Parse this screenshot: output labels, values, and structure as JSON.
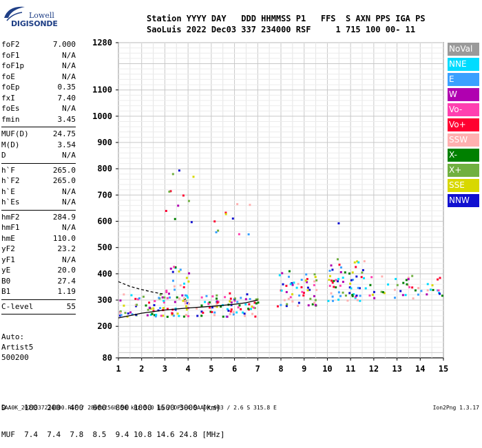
{
  "logo": {
    "line1": "Lowell",
    "line2": "DIGISONDE"
  },
  "header": {
    "line1": "Station YYYY DAY   DDD HHMMSS P1   FFS  S AXN PPS IGA PS",
    "line2": "SaoLuis 2022 Dec03 337 234000 RSF     1 715 100 00- 11"
  },
  "params": [
    {
      "label": "foF2",
      "value": "7.000"
    },
    {
      "label": "foF1",
      "value": "N/A"
    },
    {
      "label": "foF1p",
      "value": "N/A"
    },
    {
      "label": "foE",
      "value": "N/A"
    },
    {
      "label": "foEp",
      "value": "0.35"
    },
    {
      "label": "fxI",
      "value": "7.40"
    },
    {
      "label": "foEs",
      "value": "N/A"
    },
    {
      "label": "fmin",
      "value": "3.45"
    },
    {
      "sep": true
    },
    {
      "label": "MUF(D)",
      "value": "24.75"
    },
    {
      "label": "M(D)",
      "value": "3.54"
    },
    {
      "label": "D",
      "value": "N/A"
    },
    {
      "sep": true
    },
    {
      "label": "h`F",
      "value": "265.0"
    },
    {
      "label": "h`F2",
      "value": "265.0"
    },
    {
      "label": "h`E",
      "value": "N/A"
    },
    {
      "label": "h`Es",
      "value": "N/A"
    },
    {
      "sep": true
    },
    {
      "label": "hmF2",
      "value": "284.9"
    },
    {
      "label": "hmF1",
      "value": "N/A"
    },
    {
      "label": "hmE",
      "value": "110.0"
    },
    {
      "label": "yF2",
      "value": "23.2"
    },
    {
      "label": "yF1",
      "value": "N/A"
    },
    {
      "label": "yE",
      "value": "20.0"
    },
    {
      "label": "B0",
      "value": "27.4"
    },
    {
      "label": "B1",
      "value": "1.19"
    },
    {
      "sep": true
    },
    {
      "label": "C-level",
      "value": "55"
    },
    {
      "sep": true
    }
  ],
  "auto": {
    "line1": "Auto:",
    "line2": "Artist5",
    "line3": "500200"
  },
  "legend": [
    {
      "label": "NoVal",
      "color": "#9a9a9a"
    },
    {
      "label": "NNE",
      "color": "#00dcff"
    },
    {
      "label": "E",
      "color": "#3aa0ff"
    },
    {
      "label": "W",
      "color": "#b000b0"
    },
    {
      "label": "Vo-",
      "color": "#ff40b0"
    },
    {
      "label": "Vo+",
      "color": "#ff0030"
    },
    {
      "label": "SSW",
      "color": "#ffb0b0"
    },
    {
      "label": "X-",
      "color": "#008000"
    },
    {
      "label": "X+",
      "color": "#70b040"
    },
    {
      "label": "SSE",
      "color": "#d8d800"
    },
    {
      "label": "NNW",
      "color": "#1010d0"
    }
  ],
  "muf_table": {
    "row1": "D    100  200  400  600  800 1000 1500 3000 [km]",
    "row2": "MUF  7.4  7.4  7.8  8.5  9.4 10.8 14.6 24.8 [MHz]"
  },
  "footer": {
    "left": "SAA0K_2022337234000.RSF / 280fx256h 50 kHz 5.0 km / DPS-4 SAA0K 903 / 2.6 S 315.8 E",
    "right": "Ion2Png 1.3.17"
  },
  "chart_data": {
    "type": "scatter",
    "x_ticks": [
      "1",
      "2",
      "3",
      "4",
      "5",
      "6",
      "7",
      "8",
      "9",
      "10",
      "11",
      "12",
      "13",
      "14",
      "15"
    ],
    "y_ticks": [
      "80",
      "200",
      "300",
      "400",
      "500",
      "600",
      "700",
      "800",
      "900",
      "1000",
      "1100",
      "1280"
    ],
    "xlim": [
      1,
      15
    ],
    "ylim": [
      80,
      1280
    ],
    "grid": true,
    "traces": [
      {
        "name": "virtual-height-trace",
        "x": [
          1.0,
          2.0,
          3.0,
          4.0,
          5.0,
          6.0,
          6.5,
          7.0
        ],
        "y": [
          232,
          250,
          262,
          270,
          276,
          284,
          290,
          300
        ]
      },
      {
        "name": "o-trace-dashed",
        "x": [
          1.0,
          1.5,
          2.0,
          2.5,
          3.0
        ],
        "y": [
          370,
          352,
          340,
          330,
          322
        ]
      }
    ],
    "clusters": [
      {
        "x": [
          1.0,
          7.0
        ],
        "y": [
          240,
          330
        ],
        "density": 1.0
      },
      {
        "x": [
          3.0,
          4.0
        ],
        "y": [
          300,
          450
        ],
        "density": 0.6
      },
      {
        "x": [
          3.0,
          4.2
        ],
        "y": [
          600,
          800
        ],
        "density": 0.15
      },
      {
        "x": [
          7.8,
          9.6
        ],
        "y": [
          280,
          420
        ],
        "density": 0.7
      },
      {
        "x": [
          10.0,
          11.6
        ],
        "y": [
          300,
          460
        ],
        "density": 0.8
      },
      {
        "x": [
          11.6,
          15.0
        ],
        "y": [
          310,
          400
        ],
        "density": 0.5
      },
      {
        "x": [
          5.0,
          7.0
        ],
        "y": [
          500,
          700
        ],
        "density": 0.08
      },
      {
        "x": [
          10.3,
          10.6
        ],
        "y": [
          590,
          610
        ],
        "density": 0.5
      }
    ]
  }
}
